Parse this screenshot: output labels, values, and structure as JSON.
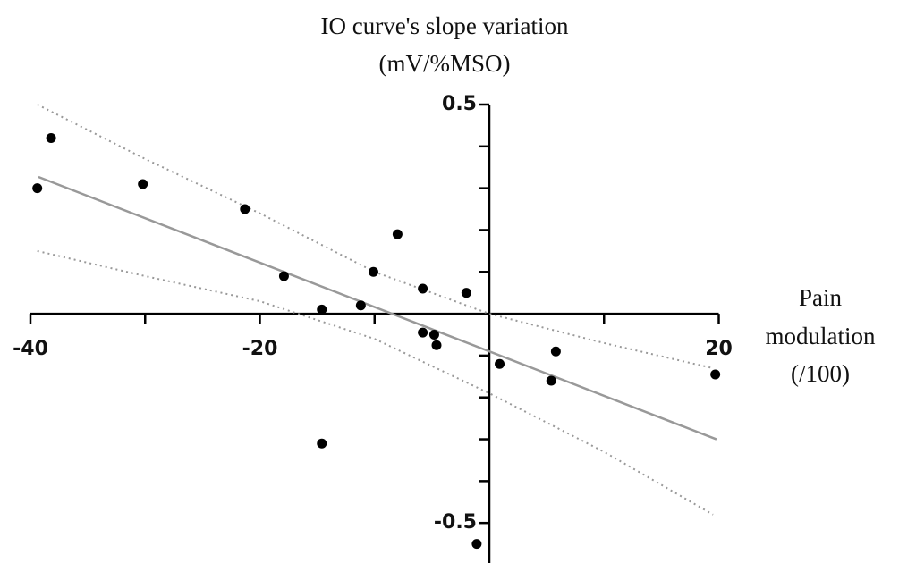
{
  "chart_data": {
    "type": "scatter",
    "y_label": [
      "IO curve's slope variation",
      "(mV/%MSO)"
    ],
    "x_label": [
      "Pain",
      "modulation",
      "(/100)"
    ],
    "x": [
      -39.4,
      -38.2,
      -30.2,
      -21.3,
      -17.9,
      -14.6,
      -14.6,
      -11.2,
      -10.1,
      -8.0,
      -5.8,
      -5.8,
      -4.8,
      -4.6,
      -2.0,
      0.9,
      5.4,
      5.8,
      19.7,
      -1.1
    ],
    "values": [
      0.3,
      0.42,
      0.31,
      0.25,
      0.09,
      0.01,
      -0.31,
      0.02,
      0.1,
      0.19,
      0.06,
      -0.045,
      -0.05,
      -0.075,
      0.05,
      -0.12,
      -0.16,
      -0.09,
      -0.145,
      -0.55
    ],
    "color": "#000000",
    "fit_line": {
      "x": [
        -39.3,
        19.8
      ],
      "values": [
        0.327,
        -0.3
      ],
      "color": "#999999"
    },
    "confidence_band": {
      "x": [
        -39.4,
        -30,
        -20,
        -10,
        0,
        10,
        19.5
      ],
      "upper": [
        0.5,
        0.37,
        0.24,
        0.1,
        0.0,
        -0.07,
        -0.13
      ],
      "lower": [
        0.15,
        0.09,
        0.03,
        -0.06,
        -0.19,
        -0.33,
        -0.48
      ],
      "color": "#999999"
    },
    "xlim": [
      -40,
      20
    ],
    "ylim": [
      -0.6,
      0.5
    ],
    "xticks": [
      -40,
      -20,
      20
    ],
    "xminor_ticks": [
      -30,
      -10,
      10
    ],
    "yticks": [
      0.5,
      -0.5
    ],
    "yminor_ticks": [
      0.4,
      0.3,
      0.2,
      0.1,
      -0.1,
      -0.2,
      -0.3,
      -0.4
    ]
  }
}
